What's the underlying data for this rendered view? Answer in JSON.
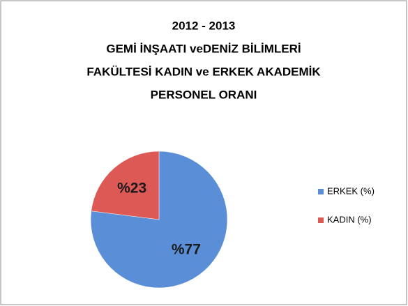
{
  "chart_data": {
    "type": "pie",
    "title": [
      "2012 - 2013",
      "GEMİ İNŞAATI veDENİZ BİLİMLERİ",
      "FAKÜLTESİ KADIN ve ERKEK AKADEMİK",
      "PERSONEL ORANI"
    ],
    "categories": [
      "ERKEK (%)",
      "KADIN (%)"
    ],
    "values": [
      77,
      23
    ],
    "value_labels": [
      "%77",
      "%23"
    ],
    "colors": [
      "#5a8ed6",
      "#dd5956"
    ],
    "legend": "right"
  }
}
